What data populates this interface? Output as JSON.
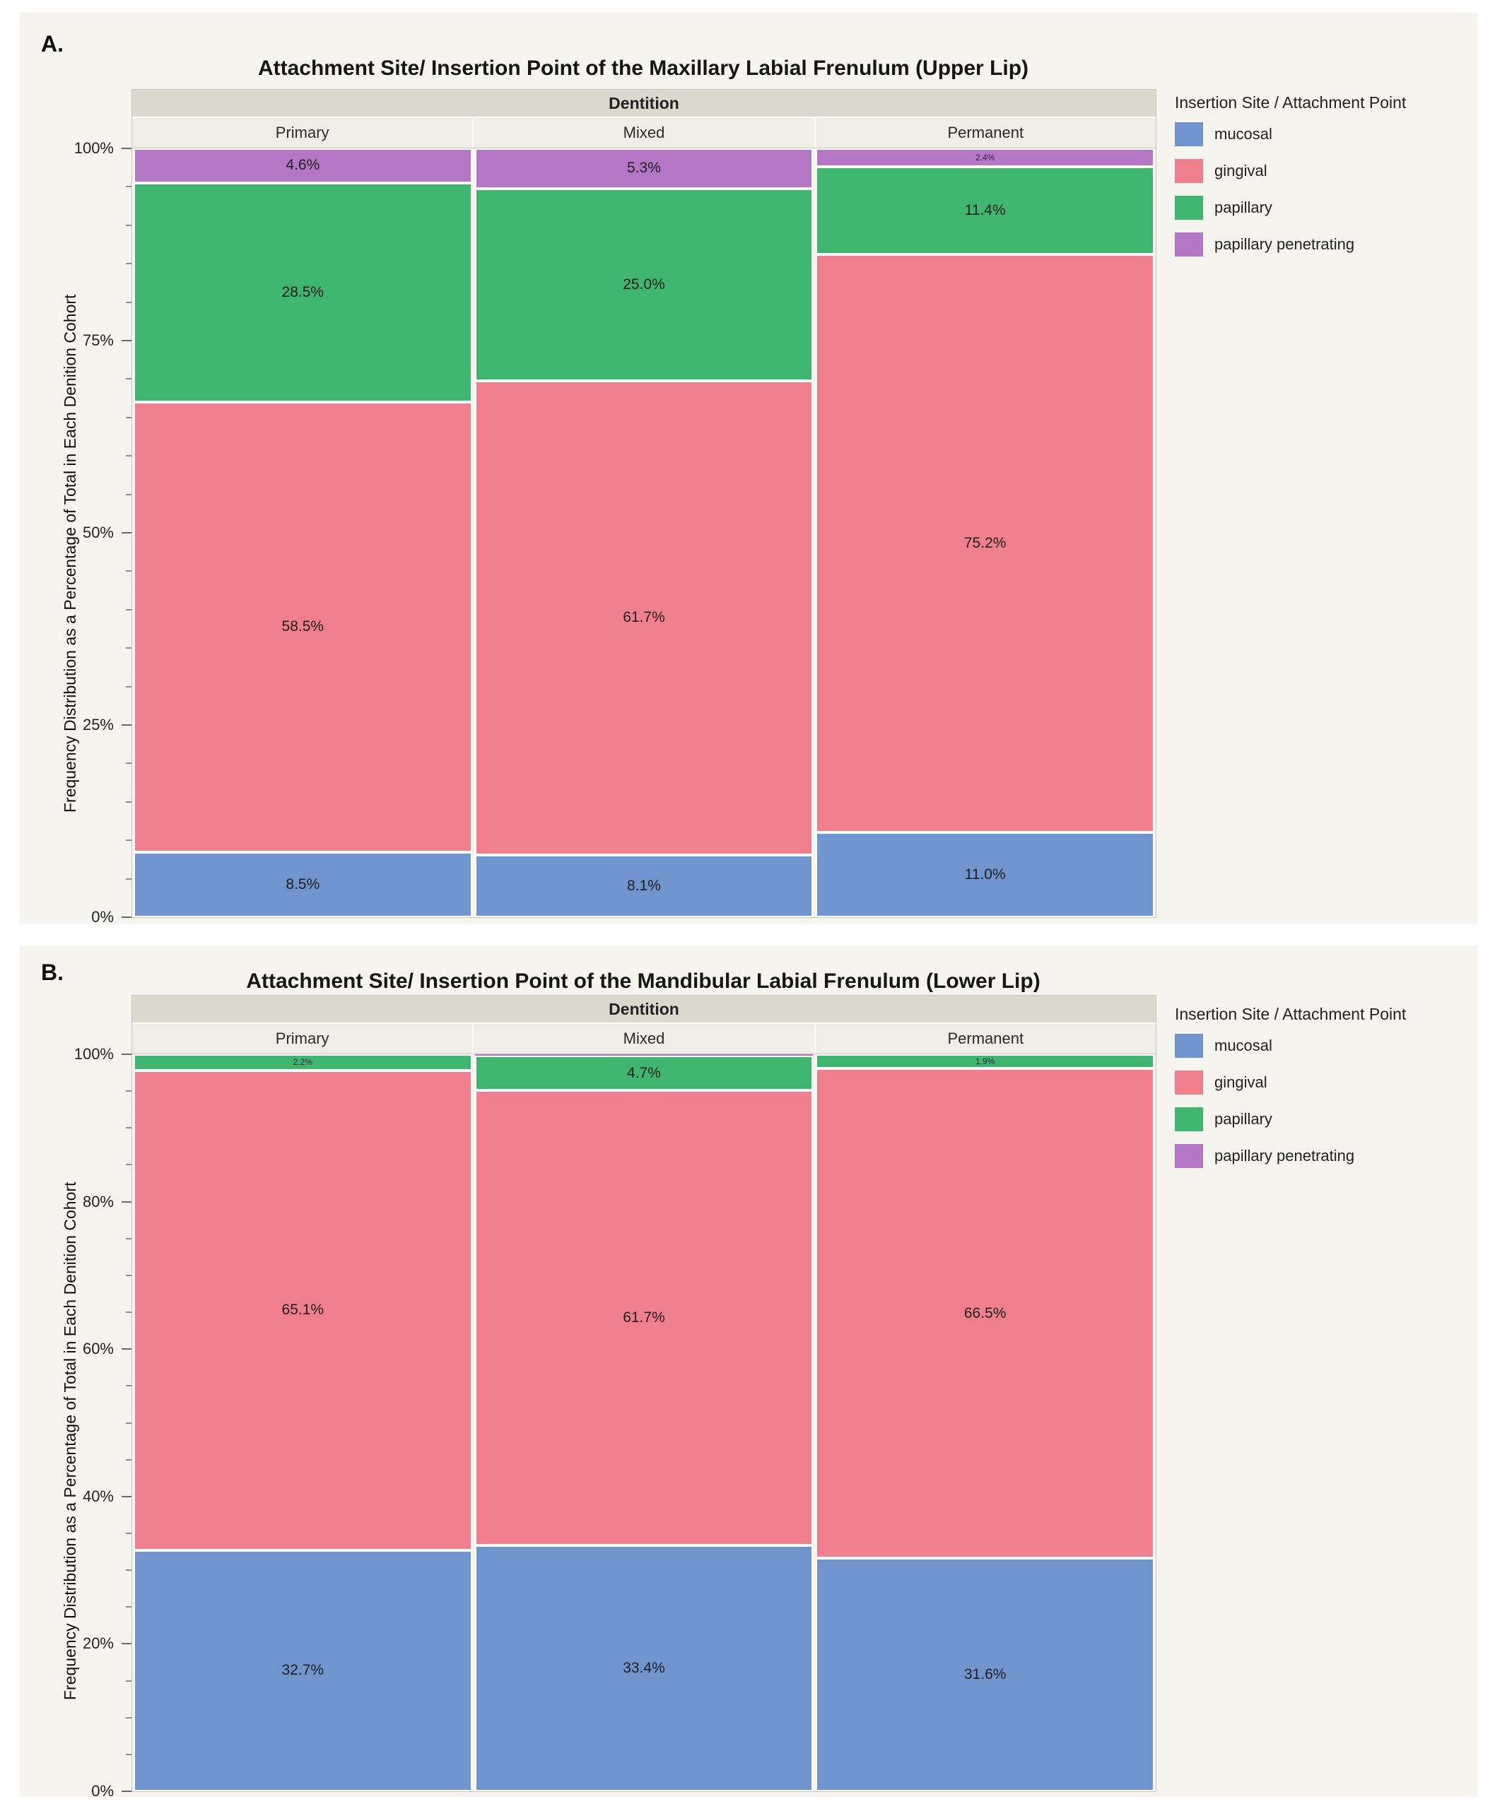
{
  "colors": {
    "panel_background": "#f5f4ee",
    "group_band_background": "#dbd8cd",
    "column_label_background": "#efede5",
    "frame_border": "#c7c5bc",
    "mucosal": "#7094ce",
    "gingival": "#f07f8e",
    "papillary": "#3fb56f",
    "papillary_penetrating": "#b477c6"
  },
  "chart_data": [
    {
      "id": "A",
      "panel_label": "A.",
      "type": "bar",
      "stacking": "percent-stacked",
      "title": "Attachment Site/ Insertion Point of the Maxillary Labial Frenulum (Upper Lip)",
      "group_header": "Dentition",
      "ylabel": "Frequency Distribution as a Percentage of Total in Each Denition Cohort",
      "ylim": [
        0,
        100
      ],
      "y_major_tick_interval": 25,
      "y_minor_tick_interval": 5,
      "y_tick_labels": [
        "0%",
        "25%",
        "50%",
        "75%",
        "100%"
      ],
      "grid": false,
      "legend_position": "right",
      "legend_title": "Insertion Site / Attachment Point",
      "categories": [
        "Primary",
        "Mixed",
        "Permanent"
      ],
      "series": [
        {
          "name": "mucosal",
          "color": "#7094ce",
          "values": [
            8.5,
            8.1,
            11.0
          ],
          "labels": [
            "8.5%",
            "8.1%",
            "11.0%"
          ]
        },
        {
          "name": "gingival",
          "color": "#f07f8e",
          "values": [
            58.5,
            61.7,
            75.2
          ],
          "labels": [
            "58.5%",
            "61.7%",
            "75.2%"
          ]
        },
        {
          "name": "papillary",
          "color": "#3fb56f",
          "values": [
            28.5,
            25.0,
            11.4
          ],
          "labels": [
            "28.5%",
            "25.0%",
            "11.4%"
          ]
        },
        {
          "name": "papillary penetrating",
          "color": "#b477c6",
          "values": [
            4.6,
            5.3,
            2.4
          ],
          "labels": [
            "4.6%",
            "5.3%",
            "2.4%"
          ]
        }
      ]
    },
    {
      "id": "B",
      "panel_label": "B.",
      "type": "bar",
      "stacking": "percent-stacked",
      "title": "Attachment Site/ Insertion Point of the Mandibular Labial Frenulum (Lower Lip)",
      "group_header": "Dentition",
      "ylabel": "Frequency Distribution as a Percentage of Total in Each Denition Cohort",
      "ylim": [
        0,
        100
      ],
      "y_major_tick_interval": 20,
      "y_minor_tick_interval": 5,
      "y_tick_labels": [
        "0%",
        "20%",
        "40%",
        "60%",
        "80%",
        "100%"
      ],
      "grid": false,
      "legend_position": "right",
      "legend_title": "Insertion Site / Attachment Point",
      "categories": [
        "Primary",
        "Mixed",
        "Permanent"
      ],
      "series": [
        {
          "name": "mucosal",
          "color": "#7094ce",
          "values": [
            32.7,
            33.4,
            31.6
          ],
          "labels": [
            "32.7%",
            "33.4%",
            "31.6%"
          ]
        },
        {
          "name": "gingival",
          "color": "#f07f8e",
          "values": [
            65.1,
            61.7,
            66.5
          ],
          "labels": [
            "65.1%",
            "61.7%",
            "66.5%"
          ]
        },
        {
          "name": "papillary",
          "color": "#3fb56f",
          "values": [
            2.2,
            4.7,
            1.9
          ],
          "labels": [
            "2.2%",
            "4.7%",
            "1.9%"
          ]
        },
        {
          "name": "papillary penetrating",
          "color": "#b477c6",
          "values": [
            0,
            0.2,
            0
          ],
          "labels": [
            "",
            "",
            ""
          ]
        }
      ]
    }
  ]
}
